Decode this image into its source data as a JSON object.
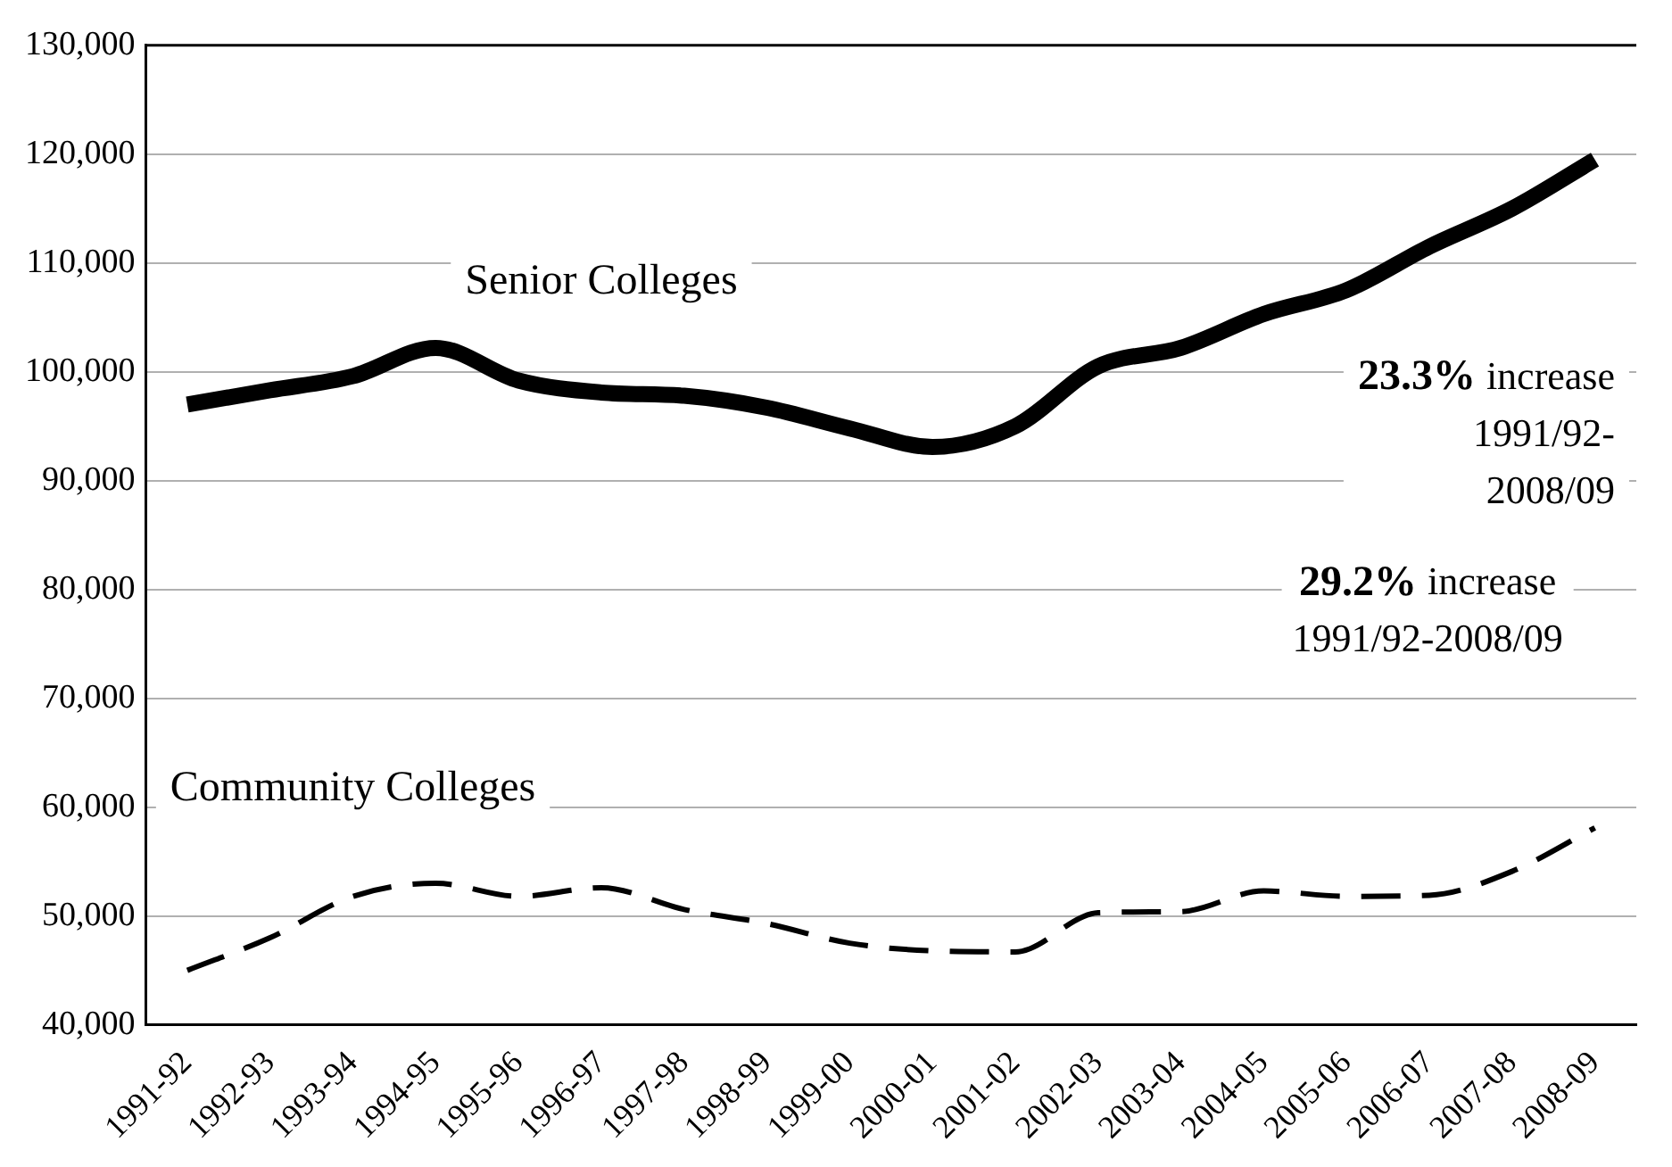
{
  "chart_data": {
    "type": "line",
    "categories": [
      "1991-92",
      "1992-93",
      "1993-94",
      "1994-95",
      "1995-96",
      "1996-97",
      "1997-98",
      "1998-99",
      "1999-00",
      "2000-01",
      "2001-02",
      "2002-03",
      "2003-04",
      "2004-05",
      "2005-06",
      "2006-07",
      "2007-08",
      "2008-09"
    ],
    "series": [
      {
        "name": "Senior Colleges",
        "color": "#000000",
        "line_style": "solid",
        "values": [
          97000,
          98300,
          99600,
          102200,
          99200,
          98100,
          97800,
          96700,
          94800,
          93100,
          95000,
          100500,
          102200,
          105300,
          107500,
          111500,
          115000,
          119500
        ]
      },
      {
        "name": "Community Colleges",
        "color": "#000000",
        "line_style": "dashed",
        "values": [
          45000,
          48000,
          51800,
          53000,
          51800,
          52600,
          50600,
          49300,
          47500,
          46800,
          46700,
          50300,
          50400,
          52300,
          51800,
          51900,
          54100,
          58100
        ]
      }
    ],
    "ylim": [
      40000,
      130000
    ],
    "yticks": [
      {
        "value": 40000,
        "label": "40,000"
      },
      {
        "value": 50000,
        "label": "50,000"
      },
      {
        "value": 60000,
        "label": "60,000"
      },
      {
        "value": 70000,
        "label": "70,000"
      },
      {
        "value": 80000,
        "label": "80,000"
      },
      {
        "value": 90000,
        "label": "90,000"
      },
      {
        "value": 100000,
        "label": "100,000"
      },
      {
        "value": 110000,
        "label": "110,000"
      },
      {
        "value": 120000,
        "label": "120,000"
      },
      {
        "value": 130000,
        "label": "130,000"
      }
    ],
    "grid": "y",
    "legend": false,
    "marker": "none",
    "annotations": [
      "23.3% increase 1991/92-2008/09",
      "29.2% increase 1991/92-2008/09"
    ]
  }
}
